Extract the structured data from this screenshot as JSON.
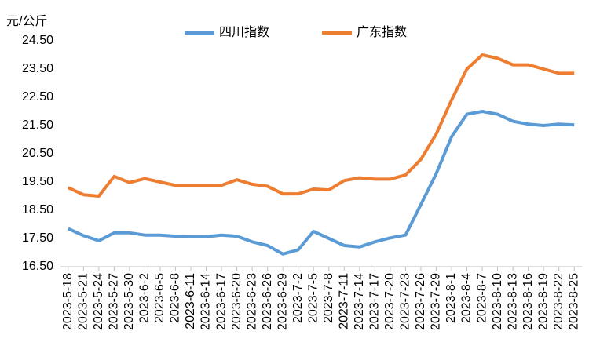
{
  "chart_data": {
    "type": "line",
    "y_unit_label": "元/公斤",
    "categories": [
      "2023-5-18",
      "2023-5-21",
      "2023-5-24",
      "2023-5-27",
      "2023-5-30",
      "2023-6-2",
      "2023-6-5",
      "2023-6-8",
      "2023-6-11",
      "2023-6-14",
      "2023-6-17",
      "2023-6-20",
      "2023-6-23",
      "2023-6-26",
      "2023-6-29",
      "2023-7-2",
      "2023-7-5",
      "2023-7-8",
      "2023-7-11",
      "2023-7-14",
      "2023-7-17",
      "2023-7-20",
      "2023-7-23",
      "2023-7-26",
      "2023-7-29",
      "2023-8-1",
      "2023-8-4",
      "2023-8-7",
      "2023-8-10",
      "2023-8-13",
      "2023-8-16",
      "2023-8-19",
      "2023-8-22",
      "2023-8-25"
    ],
    "series": [
      {
        "name": "四川指数",
        "color": "#5b9bd5",
        "values": [
          17.85,
          17.6,
          17.42,
          17.7,
          17.7,
          17.62,
          17.62,
          17.58,
          17.56,
          17.56,
          17.62,
          17.58,
          17.38,
          17.25,
          16.95,
          17.1,
          17.75,
          17.5,
          17.25,
          17.2,
          17.38,
          17.52,
          17.62,
          18.7,
          19.8,
          21.1,
          21.9,
          22.0,
          21.9,
          21.65,
          21.55,
          21.5,
          21.55,
          21.52
        ]
      },
      {
        "name": "广东指数",
        "color": "#ed7d31",
        "values": [
          19.3,
          19.05,
          19.0,
          19.7,
          19.48,
          19.62,
          19.5,
          19.38,
          19.38,
          19.38,
          19.38,
          19.58,
          19.42,
          19.35,
          19.08,
          19.08,
          19.25,
          19.22,
          19.55,
          19.65,
          19.6,
          19.6,
          19.75,
          20.3,
          21.2,
          22.4,
          23.5,
          24.0,
          23.88,
          23.65,
          23.65,
          23.5,
          23.35,
          23.35
        ]
      }
    ],
    "ylim": [
      16.5,
      24.5
    ],
    "yticks": [
      {
        "value": 16.5,
        "label": "16.50"
      },
      {
        "value": 17.5,
        "label": "17.50"
      },
      {
        "value": 18.5,
        "label": "18.50"
      },
      {
        "value": 19.5,
        "label": "19.50"
      },
      {
        "value": 20.5,
        "label": "20.50"
      },
      {
        "value": 21.5,
        "label": "21.50"
      },
      {
        "value": 22.5,
        "label": "22.50"
      },
      {
        "value": 23.5,
        "label": "23.50"
      },
      {
        "value": 24.5,
        "label": "24.50"
      }
    ],
    "grid": false,
    "legend": "top"
  }
}
